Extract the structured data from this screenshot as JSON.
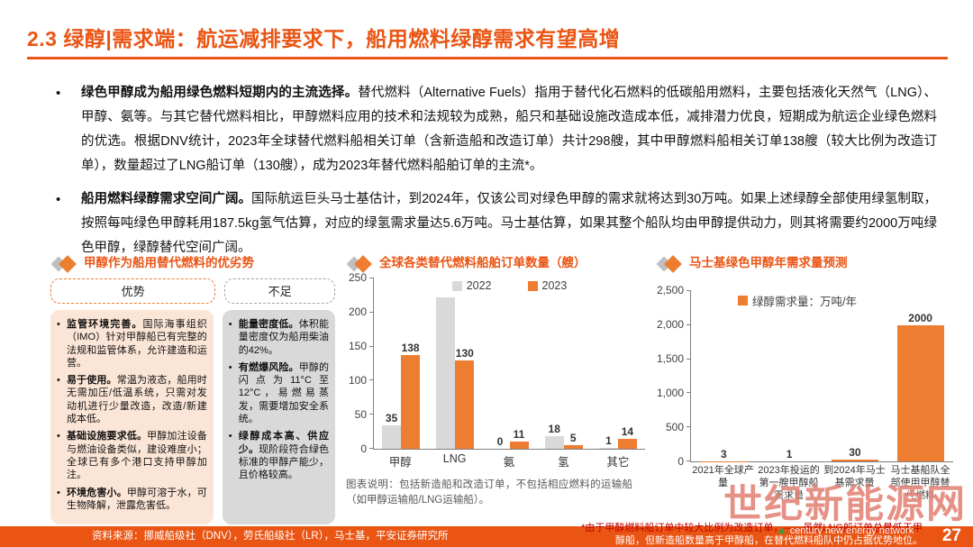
{
  "accent_color": "#EA5514",
  "bar_orange": "#ED7D31",
  "bar_gray": "#D9D9D9",
  "title": "2.3 绿醇|需求端：航运减排要求下，船用燃料绿醇需求有望高增",
  "bullets": [
    {
      "lead": "绿色甲醇成为船用绿色燃料短期内的主流选择。",
      "text": "替代燃料（Alternative Fuels）指用于替代化石燃料的低碳船用燃料，主要包括液化天然气（LNG）、甲醇、氨等。与其它替代燃料相比，甲醇燃料应用的技术和法规较为成熟，船只和基础设施改造成本低，减排潜力优良，短期成为航运企业绿色燃料的优选。根据DNV统计，2023年全球替代燃料船相关订单（含新造船和改造订单）共计298艘，其中甲醇燃料船相关订单138艘（较大比例为改造订单），数量超过了LNG船订单（130艘），成为2023年替代燃料船舶订单的主流*。"
    },
    {
      "lead": "船用燃料绿醇需求空间广阔。",
      "text": "国际航运巨头马士基估计，到2024年，仅该公司对绿色甲醇的需求就将达到30万吨。如果上述绿醇全部使用绿氢制取，按照每吨绿色甲醇耗用187.5kg氢气估算，对应的绿氢需求量达5.6万吨。马士基估算，如果其整个船队均由甲醇提供动力，则其将需要约2000万吨绿色甲醇，绿醇替代空间广阔。"
    }
  ],
  "pros_cons": {
    "header": "甲醇作为船用替代燃料的优劣势",
    "pros_title": "优势",
    "cons_title": "不足",
    "bullet_char": "•",
    "pros": [
      {
        "lead": "监管环境完善。",
        "text": "国际海事组织（IMO）针对甲醇船已有完整的法规和监管体系，允许建造和运营。"
      },
      {
        "lead": "易于使用。",
        "text": "常温为液态，船用时无需加压/低温系统，只需对发动机进行少量改造，改造/新建成本低。"
      },
      {
        "lead": "基础设施要求低。",
        "text": "甲醇加注设备与燃油设备类似，建设难度小；全球已有多个港口支持甲醇加注。"
      },
      {
        "lead": "环境危害小。",
        "text": "甲醇可溶于水，可生物降解，泄露危害低。"
      }
    ],
    "cons": [
      {
        "lead": "能量密度低。",
        "text": "体积能量密度仅为船用柴油的42%。"
      },
      {
        "lead": "有燃爆风险。",
        "text": "甲醇的闪点为11°C至12°C，易燃易蒸发，需要增加安全系统。"
      },
      {
        "lead": "绿醇成本高、供应少。",
        "text": "现阶段符合绿色标准的甲醇产能少，且价格较高。"
      }
    ]
  },
  "chart_data": [
    {
      "type": "bar",
      "title": "全球各类替代燃料船舶订单数量（艘）",
      "categories": [
        "甲醇",
        "LNG",
        "氨",
        "氢",
        "其它"
      ],
      "series": [
        {
          "name": "2022",
          "color": "#D9D9D9",
          "values": [
            35,
            222,
            0,
            18,
            1
          ],
          "labels": [
            "35",
            null,
            "0",
            "18",
            "1"
          ]
        },
        {
          "name": "2023",
          "color": "#ED7D31",
          "values": [
            138,
            130,
            11,
            5,
            14
          ],
          "labels": [
            "138",
            "130",
            "11",
            "5",
            "14"
          ]
        }
      ],
      "ylim": [
        0,
        250
      ],
      "yticks": [
        "0",
        "50",
        "100",
        "150",
        "200",
        "250"
      ],
      "legend_position": "top-center",
      "grid": false,
      "note": "图表说明：包括新造船和改造订单，不包括相应燃料的运输船（如甲醇运输船/LNG运输船）。"
    },
    {
      "type": "bar",
      "title": "马士基绿色甲醇年需求量预测",
      "categories": [
        "2021年全球产量",
        "2023年投运的第一艘甲醇船需求量",
        "到2024年马士基需求量",
        "马士基船队全部使用甲醇替代燃料"
      ],
      "series": [
        {
          "name": "绿醇需求量：万吨/年",
          "color": "#ED7D31",
          "values": [
            3,
            1,
            30,
            2000
          ],
          "labels": [
            "3",
            "1",
            "30",
            "2000"
          ]
        }
      ],
      "ylim": [
        0,
        2500
      ],
      "yticks": [
        "0",
        "500",
        "1,000",
        "1,500",
        "2,000",
        "2,500"
      ],
      "legend_position": "top",
      "grid": false
    }
  ],
  "footer": {
    "source": "资料来源：挪威船级社（DNV），劳氏船级社（LR），马士基，平安证券研究所",
    "footnote_line1": "*由于甲醇燃料船订单中较大比例为改造订单，——虽然LNG船订单总量低于甲",
    "footnote_line2": "醇船，但新造船数量高于甲醇船，在替代燃料船队中仍占据优势地位。",
    "page_number": "27"
  },
  "watermark": {
    "text": "世纪新能源网",
    "subtext": "century new energy network"
  }
}
